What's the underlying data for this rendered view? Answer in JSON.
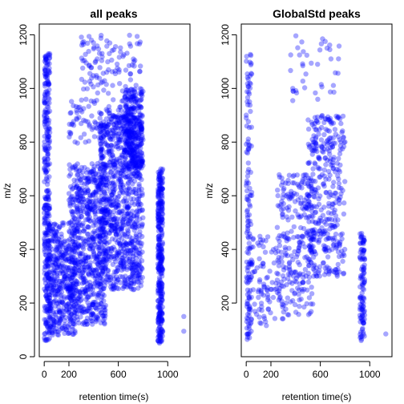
{
  "chart_data": [
    {
      "type": "scatter",
      "title": "all peaks",
      "xlabel": "retention time(s)",
      "ylabel": "m/z",
      "xlim": [
        -40,
        1180
      ],
      "ylim": [
        0,
        1240
      ],
      "xticks": [
        0,
        200,
        600,
        1000
      ],
      "yticks": [
        0,
        200,
        400,
        600,
        800,
        1000,
        1200
      ],
      "grid": false,
      "legend": "none",
      "color": "#0000FF",
      "alpha": 0.35,
      "clusters": [
        {
          "x_range": [
            0,
            45
          ],
          "y_range": [
            60,
            1130
          ],
          "count": 340
        },
        {
          "x_range": [
            40,
            250
          ],
          "y_range": [
            80,
            500
          ],
          "count": 380
        },
        {
          "x_range": [
            200,
            500
          ],
          "y_range": [
            120,
            720
          ],
          "count": 700
        },
        {
          "x_range": [
            450,
            800
          ],
          "y_range": [
            250,
            900
          ],
          "count": 900
        },
        {
          "x_range": [
            650,
            800
          ],
          "y_range": [
            700,
            1000
          ],
          "count": 260
        },
        {
          "x_range": [
            300,
            780
          ],
          "y_range": [
            980,
            1200
          ],
          "count": 110
        },
        {
          "x_range": [
            920,
            960
          ],
          "y_range": [
            50,
            700
          ],
          "count": 330
        },
        {
          "x_range": [
            200,
            800
          ],
          "y_range": [
            790,
            960
          ],
          "count": 120
        }
      ],
      "outliers": [
        {
          "x": 1130,
          "y": 150
        },
        {
          "x": 1130,
          "y": 95
        }
      ]
    },
    {
      "type": "scatter",
      "title": "GlobalStd peaks",
      "xlabel": "retention time(s)",
      "ylabel": "m/z",
      "xlim": [
        -40,
        1180
      ],
      "ylim": [
        0,
        1240
      ],
      "xticks": [
        0,
        200,
        600,
        1000
      ],
      "yticks": [
        200,
        400,
        600,
        800,
        1000,
        1200
      ],
      "grid": false,
      "legend": "none",
      "color": "#0000FF",
      "alpha": 0.35,
      "clusters": [
        {
          "x_range": [
            0,
            45
          ],
          "y_range": [
            60,
            1130
          ],
          "count": 150
        },
        {
          "x_range": [
            40,
            300
          ],
          "y_range": [
            100,
            450
          ],
          "count": 90
        },
        {
          "x_range": [
            250,
            550
          ],
          "y_range": [
            150,
            680
          ],
          "count": 260
        },
        {
          "x_range": [
            500,
            800
          ],
          "y_range": [
            300,
            900
          ],
          "count": 360
        },
        {
          "x_range": [
            350,
            780
          ],
          "y_range": [
            950,
            1200
          ],
          "count": 40
        },
        {
          "x_range": [
            920,
            960
          ],
          "y_range": [
            60,
            460
          ],
          "count": 110
        }
      ],
      "outliers": [
        {
          "x": 1130,
          "y": 85
        }
      ]
    }
  ]
}
